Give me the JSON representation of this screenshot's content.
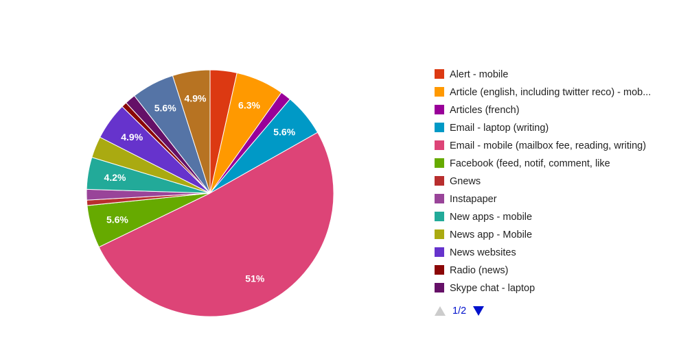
{
  "chart_data": {
    "type": "pie",
    "title": "",
    "slices": [
      {
        "name": "Alert - mobile",
        "value": 3.5,
        "label": "",
        "color": "#dc3912"
      },
      {
        "name": "Article (english, including twitter reco) - mob...",
        "value": 6.3,
        "label": "6.3%",
        "color": "#ff9900"
      },
      {
        "name": "Articles (french)",
        "value": 1.4,
        "label": "",
        "color": "#990099"
      },
      {
        "name": "Email - laptop (writing)",
        "value": 5.6,
        "label": "5.6%",
        "color": "#0099c6"
      },
      {
        "name": "Email - mobile (mailbox fee, reading, writing)",
        "value": 51,
        "label": "51%",
        "color": "#dd4477"
      },
      {
        "name": "Facebook (feed, notif, comment, like",
        "value": 5.6,
        "label": "5.6%",
        "color": "#66aa00"
      },
      {
        "name": "Gnews",
        "value": 0.7,
        "label": "",
        "color": "#b82e2e"
      },
      {
        "name": "Instapaper",
        "value": 1.4,
        "label": "",
        "color": "#994499"
      },
      {
        "name": "New apps - mobile",
        "value": 4.2,
        "label": "4.2%",
        "color": "#22aa99"
      },
      {
        "name": "News app - Mobile",
        "value": 2.8,
        "label": "",
        "color": "#aaaa11"
      },
      {
        "name": "News websites",
        "value": 4.9,
        "label": "4.9%",
        "color": "#6633cc"
      },
      {
        "name": "Radio (news)",
        "value": 0.7,
        "label": "",
        "color": "#8b0707"
      },
      {
        "name": "Skype chat - laptop",
        "value": 1.4,
        "label": "",
        "color": "#651067"
      },
      {
        "name": "",
        "value": 5.6,
        "label": "5.6%",
        "color": "#5574a6"
      },
      {
        "name": "",
        "value": 4.9,
        "label": "4.9%",
        "color": "#b77322"
      }
    ],
    "legend_position": "right"
  },
  "legend": {
    "items": [
      {
        "label": "Alert - mobile",
        "color": "#dc3912"
      },
      {
        "label": "Article (english, including twitter reco) - mob...",
        "color": "#ff9900"
      },
      {
        "label": "Articles (french)",
        "color": "#990099"
      },
      {
        "label": "Email - laptop (writing)",
        "color": "#0099c6"
      },
      {
        "label": "Email - mobile (mailbox fee, reading, writing)",
        "color": "#dd4477"
      },
      {
        "label": "Facebook (feed, notif, comment, like",
        "color": "#66aa00"
      },
      {
        "label": "Gnews",
        "color": "#b82e2e"
      },
      {
        "label": "Instapaper",
        "color": "#994499"
      },
      {
        "label": "New apps - mobile",
        "color": "#22aa99"
      },
      {
        "label": "News app - Mobile",
        "color": "#aaaa11"
      },
      {
        "label": "News websites",
        "color": "#6633cc"
      },
      {
        "label": "Radio (news)",
        "color": "#8b0707"
      },
      {
        "label": "Skype chat - laptop",
        "color": "#651067"
      }
    ]
  },
  "pager": {
    "page_text": "1/2",
    "prev_icon": "triangle-up-icon",
    "next_icon": "triangle-down-icon",
    "prev_color": "#cccccc",
    "next_color": "#0011cc"
  }
}
